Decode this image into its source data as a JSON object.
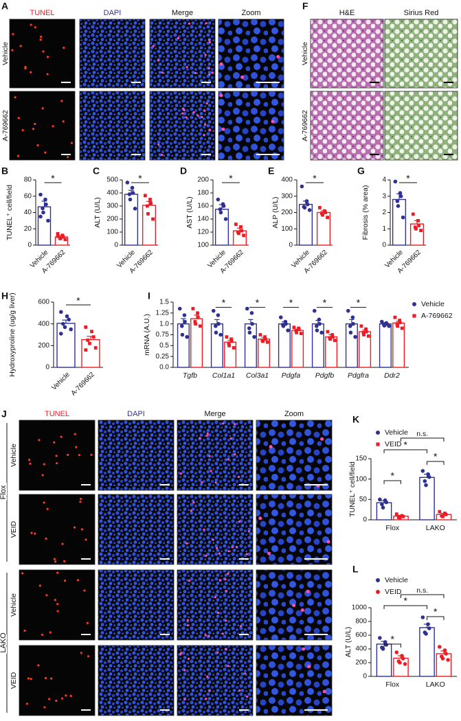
{
  "image_panels": [
    {
      "panel": "A",
      "columns": [
        "TUNEL",
        "DAPI",
        "Merge",
        "Zoom"
      ],
      "rows": [
        "Vehicle",
        "A-769662"
      ]
    },
    {
      "panel": "F",
      "columns": [
        "H&E",
        "Sirius Red"
      ],
      "rows": [
        "Vehicle",
        "A-769662"
      ]
    },
    {
      "panel": "J",
      "columns": [
        "TUNEL",
        "DAPI",
        "Merge",
        "Zoom"
      ],
      "groups": [
        {
          "name": "Flox",
          "rows": [
            "Vehicle",
            "VEID"
          ]
        },
        {
          "name": "LAKO",
          "rows": [
            "Vehicle",
            "VEID"
          ]
        }
      ]
    }
  ],
  "chart_data": [
    {
      "type": "bar",
      "panel": "B",
      "ylabel": "TUNEL⁺ cell/field",
      "categories": [
        "Vehicle",
        "A-769662"
      ],
      "colors": [
        "#2e3192",
        "#ed1c24"
      ],
      "markers": [
        "circle",
        "square"
      ],
      "values": [
        47,
        10
      ],
      "errors": [
        7,
        2
      ],
      "points": [
        [
          62,
          56,
          50,
          45,
          40,
          30,
          35
        ],
        [
          14,
          12,
          10,
          9,
          8,
          7,
          11
        ]
      ],
      "annotations": [
        "*"
      ],
      "ylim": [
        0,
        80
      ],
      "yticks": [
        0,
        20,
        40,
        60,
        80
      ]
    },
    {
      "type": "bar",
      "panel": "C",
      "ylabel": "ALT (U/L)",
      "categories": [
        "Vehicle",
        "A-769662"
      ],
      "colors": [
        "#2e3192",
        "#ed1c24"
      ],
      "markers": [
        "circle",
        "square"
      ],
      "values": [
        390,
        305
      ],
      "errors": [
        30,
        30
      ],
      "points": [
        [
          480,
          440,
          400,
          390,
          350,
          280
        ],
        [
          380,
          350,
          320,
          300,
          240,
          200
        ]
      ],
      "annotations": [
        "*"
      ],
      "ylim": [
        0,
        500
      ],
      "yticks": [
        0,
        100,
        200,
        300,
        400,
        500
      ]
    },
    {
      "type": "bar",
      "panel": "D",
      "ylabel": "AST (U/L)",
      "categories": [
        "Vehicle",
        "A-769662"
      ],
      "colors": [
        "#2e3192",
        "#ed1c24"
      ],
      "markers": [
        "circle",
        "square"
      ],
      "values": [
        155,
        122
      ],
      "errors": [
        7,
        4
      ],
      "points": [
        [
          170,
          163,
          160,
          155,
          150,
          140
        ],
        [
          132,
          128,
          122,
          120,
          118,
          115
        ]
      ],
      "annotations": [
        "*"
      ],
      "ylim": [
        100,
        200
      ],
      "yticks": [
        100,
        120,
        140,
        160,
        180,
        200
      ]
    },
    {
      "type": "bar",
      "panel": "E",
      "ylabel": "ALP (U/L)",
      "categories": [
        "Vehicle",
        "A-769662"
      ],
      "colors": [
        "#2e3192",
        "#ed1c24"
      ],
      "markers": [
        "circle",
        "square"
      ],
      "values": [
        250,
        200
      ],
      "errors": [
        20,
        10
      ],
      "points": [
        [
          360,
          270,
          250,
          235,
          230,
          215
        ],
        [
          230,
          210,
          200,
          195,
          185,
          170
        ]
      ],
      "annotations": [
        "*"
      ],
      "ylim": [
        0,
        400
      ],
      "yticks": [
        0,
        100,
        200,
        300,
        400
      ]
    },
    {
      "type": "bar",
      "panel": "G",
      "ylabel": "Fibrosis (% area)",
      "categories": [
        "Vehicle",
        "A-769662"
      ],
      "colors": [
        "#2e3192",
        "#ed1c24"
      ],
      "markers": [
        "circle",
        "square"
      ],
      "values": [
        2.8,
        1.3
      ],
      "errors": [
        0.35,
        0.2
      ],
      "points": [
        [
          3.9,
          3.2,
          3.0,
          2.7,
          2.4,
          1.7
        ],
        [
          1.9,
          1.5,
          1.2,
          1.1,
          1.0,
          0.9
        ]
      ],
      "annotations": [
        "*"
      ],
      "ylim": [
        0,
        4
      ],
      "yticks": [
        0,
        1,
        2,
        3,
        4
      ]
    },
    {
      "type": "bar",
      "panel": "H",
      "ylabel": "Hydroxyproline (ug/g liver)",
      "categories": [
        "Vehicle",
        "A-769662"
      ],
      "colors": [
        "#2e3192",
        "#ed1c24"
      ],
      "markers": [
        "circle",
        "square"
      ],
      "values": [
        405,
        255
      ],
      "errors": [
        30,
        30
      ],
      "points": [
        [
          510,
          470,
          440,
          400,
          370,
          350,
          310
        ],
        [
          370,
          330,
          280,
          250,
          220,
          180,
          160
        ]
      ],
      "annotations": [
        "*"
      ],
      "ylim": [
        0,
        600
      ],
      "yticks": [
        0,
        200,
        400,
        600
      ]
    },
    {
      "type": "bar",
      "panel": "I",
      "ylabel": "mRNA (A.U.)",
      "categories": [
        "Tgfb",
        "Col1a1",
        "Col3a1",
        "Pdgfa",
        "Pdgfb",
        "Pdgfra",
        "Ddr2"
      ],
      "series": [
        {
          "name": "Vehicle",
          "color": "#2e3192",
          "marker": "circle",
          "values": [
            1.0,
            1.0,
            1.0,
            1.0,
            1.0,
            1.0,
            1.0
          ],
          "errors": [
            0.12,
            0.1,
            0.1,
            0.05,
            0.08,
            0.1,
            0.03
          ],
          "points": [
            [
              1.35,
              1.2,
              1.05,
              0.95,
              0.75,
              0.7
            ],
            [
              1.3,
              1.2,
              1.0,
              0.95,
              0.8,
              0.75
            ],
            [
              1.35,
              1.25,
              1.0,
              0.9,
              0.8,
              0.7
            ],
            [
              1.15,
              1.05,
              1.0,
              0.98,
              0.95,
              0.85
            ],
            [
              1.3,
              1.1,
              1.0,
              0.95,
              0.85,
              0.8
            ],
            [
              1.3,
              1.15,
              1.0,
              0.95,
              0.8,
              0.7
            ],
            [
              1.05,
              1.02,
              1.0,
              0.98,
              0.96,
              0.95
            ]
          ]
        },
        {
          "name": "A-769662",
          "color": "#ed1c24",
          "marker": "square",
          "values": [
            1.12,
            0.58,
            0.65,
            0.85,
            0.7,
            0.82,
            1.02
          ],
          "errors": [
            0.08,
            0.04,
            0.04,
            0.03,
            0.05,
            0.04,
            0.04
          ],
          "points": [
            [
              1.35,
              1.25,
              1.15,
              1.05,
              1.0,
              0.95
            ],
            [
              0.7,
              0.65,
              0.6,
              0.55,
              0.5,
              0.45
            ],
            [
              0.75,
              0.7,
              0.65,
              0.62,
              0.6,
              0.58
            ],
            [
              0.92,
              0.9,
              0.87,
              0.84,
              0.8,
              0.78
            ],
            [
              0.82,
              0.75,
              0.7,
              0.68,
              0.65,
              0.62
            ],
            [
              0.95,
              0.88,
              0.82,
              0.8,
              0.75,
              0.72
            ],
            [
              1.15,
              1.08,
              1.03,
              1.0,
              0.95,
              0.9
            ]
          ]
        }
      ],
      "significance": [
        null,
        "*",
        "*",
        "*",
        "*",
        "*",
        null
      ],
      "ylim": [
        0,
        1.5
      ],
      "yticks": [
        {
          "value": 0,
          "label": "0.0"
        },
        0.25,
        {
          "value": 0.5,
          "label": "0.5"
        },
        0.75,
        {
          "value": 1,
          "label": "1.0"
        },
        1.25,
        {
          "value": 1.5,
          "label": "1.5"
        }
      ]
    },
    {
      "type": "bar",
      "panel": "K",
      "ylabel": "TUNEL⁺ cell/field",
      "categories": [
        "Flox",
        "LAKO"
      ],
      "series": [
        {
          "name": "Vehicle",
          "color": "#2e3192",
          "marker": "circle",
          "values": [
            42,
            104
          ],
          "errors": [
            5,
            8
          ],
          "points": [
            [
              50,
              48,
              43,
              38,
              30
            ],
            [
              120,
              112,
              105,
              95,
              85
            ]
          ]
        },
        {
          "name": "VEID",
          "color": "#ed1c24",
          "marker": "square",
          "values": [
            9,
            13
          ],
          "errors": [
            2,
            3
          ],
          "points": [
            [
              14,
              10,
              8,
              6,
              5
            ],
            [
              20,
              16,
              13,
              10,
              8
            ]
          ]
        }
      ],
      "annotations": [
        "*",
        "*",
        "*",
        "n.s."
      ],
      "ylim": [
        0,
        150
      ],
      "yticks": [
        0,
        50,
        100,
        150
      ]
    },
    {
      "type": "bar",
      "panel": "L",
      "ylabel": "ALT (U/L)",
      "categories": [
        "Flox",
        "LAKO"
      ],
      "series": [
        {
          "name": "Vehicle",
          "color": "#2e3192",
          "marker": "circle",
          "values": [
            470,
            710
          ],
          "errors": [
            40,
            50
          ],
          "points": [
            [
              560,
              500,
              460,
              420,
              400
            ],
            [
              860,
              760,
              700,
              640,
              620
            ]
          ]
        },
        {
          "name": "VEID",
          "color": "#ed1c24",
          "marker": "circle",
          "values": [
            265,
            330
          ],
          "errors": [
            35,
            40
          ],
          "points": [
            [
              350,
              300,
              260,
              220,
              200,
              180
            ],
            [
              430,
              380,
              330,
              290,
              260,
              240
            ]
          ]
        }
      ],
      "annotations": [
        "*",
        "*",
        "*",
        "n.s."
      ],
      "ylim": [
        0,
        1000
      ],
      "yticks": [
        0,
        200,
        400,
        600,
        800,
        1000
      ]
    }
  ]
}
